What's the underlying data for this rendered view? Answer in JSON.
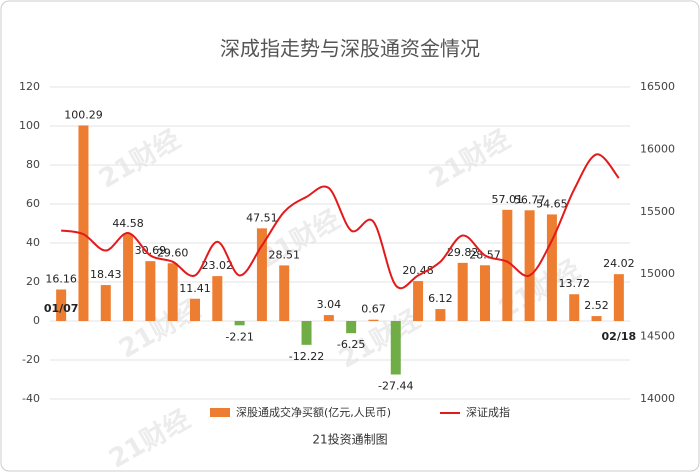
{
  "chart_data": {
    "type": "bar-line",
    "title": "深成指走势与深股通资金情况",
    "source": "21投资通制图",
    "watermark": "21财经",
    "categories": [
      "01/07",
      null,
      null,
      null,
      null,
      null,
      null,
      null,
      null,
      null,
      null,
      null,
      null,
      null,
      null,
      null,
      null,
      null,
      null,
      null,
      null,
      null,
      null,
      null,
      null,
      "02/18"
    ],
    "series": [
      {
        "name": "深股通成交净买额(亿元,人民币)",
        "type": "bar",
        "color": "#ed7d31",
        "negative_color": "#70ad47",
        "values": [
          16.16,
          100.29,
          18.43,
          44.58,
          30.69,
          29.6,
          11.41,
          23.02,
          -2.21,
          47.51,
          28.51,
          -12.22,
          3.04,
          -6.25,
          0.67,
          -27.44,
          20.48,
          6.12,
          29.82,
          28.57,
          57.01,
          56.77,
          54.65,
          13.72,
          2.52,
          24.02
        ],
        "value_labels": [
          "16.16",
          "100.29",
          "18.43",
          "44.58",
          "30.69",
          "29.60",
          "11.41",
          "23.02",
          "-2.21",
          "47.51",
          "28.51",
          "-12.22",
          "3.04",
          "-6.25",
          "0.67",
          "-27.44",
          "20.48",
          "6.12",
          "29.82",
          "28.57",
          "57.01",
          "56.77",
          "54.65",
          "13.72",
          "2.52",
          "24.02"
        ]
      },
      {
        "name": "深证成指",
        "type": "line",
        "axis": "y2",
        "color": "#e31a1c",
        "values": [
          15350,
          15320,
          15190,
          15330,
          15150,
          15100,
          14990,
          15260,
          14990,
          15230,
          15500,
          15620,
          15690,
          15350,
          15420,
          14910,
          14990,
          15100,
          15310,
          15150,
          15100,
          14990,
          15270,
          15680,
          15960,
          15770
        ]
      }
    ],
    "ylim": [
      -40,
      120
    ],
    "yticks": [
      -40,
      -20,
      0,
      20,
      40,
      60,
      80,
      100,
      120
    ],
    "y2lim": [
      14000,
      16500
    ],
    "y2ticks": [
      14000,
      14500,
      15000,
      15500,
      16000,
      16500
    ],
    "grid": true
  }
}
